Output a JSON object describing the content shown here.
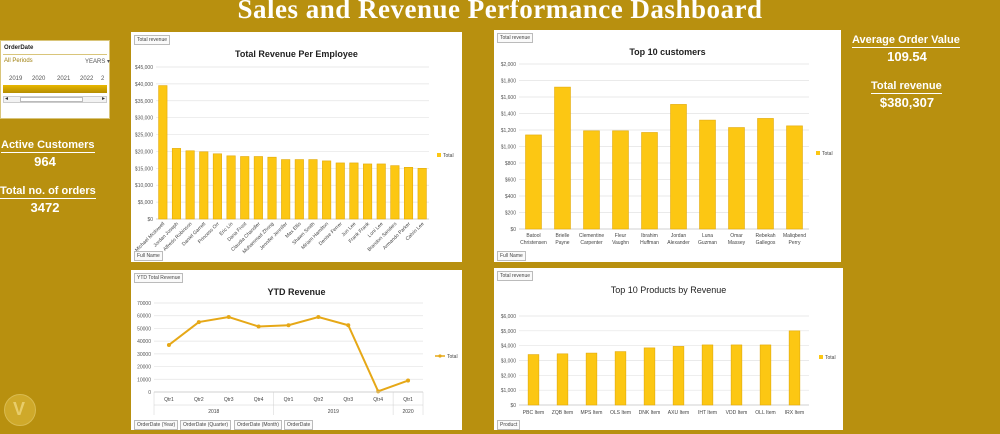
{
  "dashboard_title": "Sales and Revenue Performance Dashboard",
  "colors": {
    "background": "#b8900f",
    "bar": "#fcc713",
    "bar_edge": "#e2a90a",
    "line": "#e6a817"
  },
  "slicer": {
    "title": "OrderDate",
    "selection": "All Periods",
    "level": "YEARS",
    "years": [
      "2019",
      "2020",
      "2021",
      "2022",
      "2"
    ]
  },
  "kpis": {
    "active_customers_label": "Active Customers",
    "active_customers_value": "964",
    "orders_label": "Total no. of orders",
    "orders_value": "3472",
    "aov_label": "Average Order Value",
    "aov_value": "109.54",
    "revenue_label": "Total revenue",
    "revenue_value": "$380,307"
  },
  "chart_data": [
    {
      "id": "emp",
      "type": "bar",
      "field_tag": "Total revenue",
      "axis_tag": "Full Name",
      "title": "Total Revenue Per Employee",
      "legend": "Total",
      "ylim": [
        0,
        45000
      ],
      "yticks": [
        0,
        5000,
        10000,
        15000,
        20000,
        25000,
        30000,
        35000,
        40000,
        45000
      ],
      "ytick_labels": [
        "$0",
        "$5,000",
        "$10,000",
        "$15,000",
        "$20,000",
        "$25,000",
        "$30,000",
        "$35,000",
        "$40,000",
        "$45,000"
      ],
      "categories": [
        "Michael Mcdowell",
        "Jordan Joseph",
        "Alfredo Robinson",
        "Daniel Garrett",
        "Princess Orr",
        "Eric Lin",
        "Dana Frost",
        "Claudia Chandler",
        "Muhammad Zhong",
        "Jennifer Jennifer",
        "Max Ellis",
        "Shawn Smith",
        "Miriam Hamilton",
        "Denise Ferrer",
        "Jun Lee",
        "Frank Frank",
        "Loni Lee",
        "Brandon Sanders",
        "Armando Parker",
        "Calvin Lee"
      ],
      "values": [
        39500,
        20900,
        20200,
        19900,
        19300,
        18700,
        18500,
        18500,
        18300,
        17600,
        17600,
        17600,
        17200,
        16600,
        16600,
        16300,
        16300,
        15800,
        15300,
        15000
      ]
    },
    {
      "id": "cust",
      "type": "bar",
      "field_tag": "Total revenue",
      "axis_tag": "Full Name",
      "title": "Top 10 customers",
      "legend": "Total",
      "ylim": [
        0,
        2000
      ],
      "yticks": [
        0,
        200,
        400,
        600,
        800,
        1000,
        1200,
        1400,
        1600,
        1800,
        2000
      ],
      "ytick_labels": [
        "$0",
        "$200",
        "$400",
        "$600",
        "$800",
        "$1,000",
        "$1,200",
        "$1,400",
        "$1,600",
        "$1,800",
        "$2,000"
      ],
      "categories": [
        "Batool Christensen",
        "Brielle Payne",
        "Clementine Carpenter",
        "Fleur Vaughn",
        "Ibrahim Huffman",
        "Jordan Alexander",
        "Luna Guzman",
        "Omar Massey",
        "Rebekah Gallegos",
        "Maliqbend Perry"
      ],
      "values": [
        1140,
        1720,
        1190,
        1190,
        1170,
        1510,
        1320,
        1230,
        1340,
        1250
      ]
    },
    {
      "id": "ytd",
      "type": "line",
      "field_tag": "YTD Total Revenue",
      "title": "YTD Revenue",
      "legend": "Total",
      "ylim": [
        0,
        70000
      ],
      "yticks": [
        0,
        10000,
        20000,
        30000,
        40000,
        50000,
        60000,
        70000
      ],
      "ytick_labels": [
        "0",
        "10000",
        "20000",
        "30000",
        "40000",
        "50000",
        "60000",
        "70000"
      ],
      "x": [
        "Qtr1",
        "Qtr2",
        "Qtr3",
        "Qtr4",
        "Qtr1",
        "Qtr2",
        "Qtr3",
        "Qtr4",
        "Qtr1"
      ],
      "year_groups": [
        {
          "label": "2018",
          "span": 4
        },
        {
          "label": "2019",
          "span": 4
        },
        {
          "label": "2020",
          "span": 1
        }
      ],
      "values": [
        37000,
        55000,
        59000,
        51500,
        52500,
        59000,
        52500,
        500,
        9000
      ],
      "field_buttons": [
        "OrderDate (Year)",
        "OrderDate (Quarter)",
        "OrderDate (Month)",
        "OrderDate"
      ]
    },
    {
      "id": "prod",
      "type": "bar",
      "field_tag": "Total revenue",
      "axis_tag": "Product",
      "title": "Top 10 Products by Revenue",
      "legend": "Total",
      "ylim": [
        0,
        6000
      ],
      "yticks": [
        0,
        1000,
        2000,
        3000,
        4000,
        5000,
        6000
      ],
      "ytick_labels": [
        "$0",
        "$1,000",
        "$2,000",
        "$3,000",
        "$4,000",
        "$5,000",
        "$6,000"
      ],
      "categories": [
        "PBC Item",
        "ZQB Item",
        "MPS Item",
        "OLS Item",
        "DNK Item",
        "AXU Item",
        "IHT Item",
        "VDD Item",
        "OLL Item",
        "IRX Item"
      ],
      "values": [
        3400,
        3450,
        3500,
        3600,
        3850,
        3950,
        4050,
        4050,
        4050,
        5000
      ]
    }
  ]
}
